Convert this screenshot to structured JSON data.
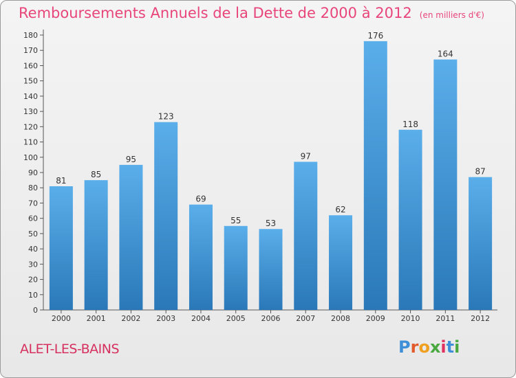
{
  "header": {
    "title": "Remboursements Annuels de la Dette de 2000 à 2012",
    "subtitle": "(en milliers d'€)"
  },
  "footer": {
    "commune": "ALET-LES-BAINS",
    "logo": "Proxiti"
  },
  "colors": {
    "title": "#e8457a",
    "bar_top": "#5aaeea",
    "bar_bottom": "#2a78b8",
    "logo": [
      "#3f8fd8",
      "#e25a2a",
      "#f0a020",
      "#4aa840",
      "#e03060",
      "#3f8fd8",
      "#4aa840"
    ]
  },
  "chart_data": {
    "type": "bar",
    "categories": [
      "2000",
      "2001",
      "2002",
      "2003",
      "2004",
      "2005",
      "2006",
      "2007",
      "2008",
      "2009",
      "2010",
      "2011",
      "2012"
    ],
    "values": [
      81,
      85,
      95,
      123,
      69,
      55,
      53,
      97,
      62,
      176,
      118,
      164,
      87
    ],
    "ylim": [
      0,
      180
    ],
    "ytick_step": 10,
    "grid": false,
    "data_labels": true
  }
}
